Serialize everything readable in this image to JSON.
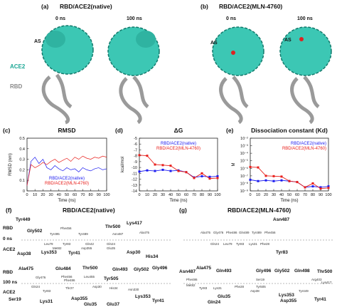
{
  "panel_a": {
    "label": "(a)",
    "title": "RBD/ACE2(native)",
    "time_left": "0 ns",
    "time_right": "100 ns",
    "site": "AS",
    "receptor": "ACE2",
    "domain": "RBD"
  },
  "panel_b": {
    "label": "(b)",
    "title": "RBD/ACE2(MLN-4760)",
    "time_left": "0 ns",
    "time_right": "100 ns",
    "site_left": "AS",
    "site_right": "AS"
  },
  "chart_data": [
    {
      "type": "line",
      "panel_label": "(c)",
      "title": "RMSD",
      "xlabel": "Time (ns)",
      "ylabel": "RMSD (nm)",
      "legend": "lower center",
      "x": [
        0,
        5,
        10,
        15,
        20,
        25,
        30,
        35,
        40,
        45,
        50,
        55,
        60,
        65,
        70,
        75,
        80,
        85,
        90,
        95,
        100
      ],
      "series": [
        {
          "name": "RBD/ACE2(native)",
          "color": "#1c1cf0",
          "values": [
            0.05,
            0.28,
            0.32,
            0.26,
            0.3,
            0.22,
            0.2,
            0.24,
            0.21,
            0.19,
            0.22,
            0.2,
            0.21,
            0.18,
            0.22,
            0.2,
            0.19,
            0.21,
            0.22,
            0.2,
            0.21
          ]
        },
        {
          "name": "RBD/ACE2(MLN-4760)",
          "color": "#e8201c",
          "values": [
            0.05,
            0.25,
            0.22,
            0.24,
            0.27,
            0.25,
            0.28,
            0.3,
            0.27,
            0.29,
            0.31,
            0.28,
            0.32,
            0.3,
            0.33,
            0.31,
            0.3,
            0.32,
            0.31,
            0.33,
            0.32
          ]
        }
      ],
      "xlim": [
        0,
        100
      ],
      "ylim": [
        0,
        0.5
      ],
      "xticks": [
        0,
        10,
        20,
        30,
        40,
        50,
        60,
        70,
        80,
        90,
        100
      ],
      "yticks": [
        0,
        0.1,
        0.2,
        0.3,
        0.4,
        0.5
      ],
      "markers": false
    },
    {
      "type": "line",
      "panel_label": "(d)",
      "title": "ΔG",
      "xlabel": "Time (ns)",
      "ylabel": "kcal/mol",
      "legend": "upper center",
      "x": [
        0,
        10,
        20,
        30,
        40,
        50,
        60,
        70,
        80,
        90,
        100
      ],
      "series": [
        {
          "name": "RBD/ACE2(native)",
          "color": "#1c1cf0",
          "values": [
            -10.7,
            -10.5,
            -10.6,
            -10.4,
            -10.6,
            -10.5,
            -10.8,
            -11.7,
            -11.5,
            -11.6,
            -11.5
          ]
        },
        {
          "name": "RBD/ACE2(MLN-4760)",
          "color": "#e8201c",
          "values": [
            -7.9,
            -8.0,
            -9.5,
            -9.6,
            -9.7,
            -10.6,
            -10.8,
            -11.8,
            -11.0,
            -11.9,
            -11.8
          ]
        }
      ],
      "xlim": [
        0,
        100
      ],
      "ylim": [
        -14,
        -5
      ],
      "xticks": [
        0,
        10,
        20,
        30,
        40,
        50,
        60,
        70,
        80,
        90,
        100
      ],
      "yticks": [
        -5,
        -6,
        -7,
        -8,
        -9,
        -10,
        -11,
        -12,
        -13,
        -14
      ],
      "markers": true
    },
    {
      "type": "line",
      "panel_label": "(e)",
      "title": "Dissociation constant (Kd)",
      "xlabel": "Time (ns)",
      "ylabel": "M",
      "legend": "upper right",
      "log_y": true,
      "x": [
        0,
        10,
        20,
        30,
        40,
        50,
        60,
        70,
        80,
        90,
        100
      ],
      "series": [
        {
          "name": "RBD/ACE2(native)",
          "color": "#1c1cf0",
          "values": [
            3e-08,
            2e-08,
            2.5e-08,
            2e-08,
            2.5e-08,
            2e-08,
            1.5e-08,
            3e-09,
            4e-09,
            3e-09,
            4e-09
          ]
        },
        {
          "name": "RBD/ACE2(MLN-4760)",
          "color": "#e8201c",
          "values": [
            1.5e-06,
            1.3e-06,
            1e-07,
            9e-08,
            8e-08,
            2e-08,
            1.5e-08,
            3e-09,
            1e-08,
            2e-09,
            2.5e-09
          ]
        }
      ],
      "xlim": [
        0,
        100
      ],
      "ylim": [
        1e-09,
        0.01
      ],
      "xticks": [
        0,
        10,
        20,
        30,
        40,
        50,
        60,
        70,
        80,
        90,
        100
      ],
      "yticks": [
        {
          "value": 0.01,
          "label": "10⁻²"
        },
        {
          "value": 0.001,
          "label": "10⁻³"
        },
        {
          "value": 0.0001,
          "label": "10⁻⁴"
        },
        {
          "value": 1e-05,
          "label": "10⁻⁵"
        },
        {
          "value": 1e-06,
          "label": "10⁻⁶"
        },
        {
          "value": 1e-07,
          "label": "10⁻⁷"
        },
        {
          "value": 1e-08,
          "label": "10⁻⁸"
        },
        {
          "value": 1e-09,
          "label": "10⁻⁹"
        }
      ],
      "markers": true
    }
  ],
  "panel_f": {
    "label": "(f)",
    "title": "RBD/ACE2(native)",
    "rows": [
      {
        "rbd": "RBD",
        "time": "0 ns",
        "ace2": "ACE2",
        "residues": [
          "Tyr449",
          "Gly502",
          "Thr500",
          "Lys417",
          "Asp38",
          "Lys353",
          "Tyr41",
          "Asp30",
          "His34"
        ],
        "minor": [
          "Phe456",
          "Tyr495",
          "Tyr489",
          "Asn487",
          "Ala475",
          "Leu79",
          "Met82",
          "Tyr83",
          "Gln42",
          "Asp355",
          "Gln24",
          "Glu35"
        ]
      },
      {
        "rbd": "RBD",
        "time": "100 ns",
        "ace2": "ACE2",
        "residues": [
          "Ala475",
          "Glu484",
          "Thr500",
          "Gln493",
          "Gly502",
          "Gly496",
          "Tyr505",
          "Ser19",
          "Lys31",
          "Asp355",
          "Glu35",
          "Glu37",
          "Lys353",
          "Tyr41"
        ],
        "minor": [
          "Gly476",
          "Phe456",
          "Phe486",
          "Leu455",
          "Gln24",
          "Thr27",
          "Asp30",
          "His34",
          "Tyr83",
          "Asn330"
        ]
      }
    ]
  },
  "panel_g": {
    "label": "(g)",
    "title": "RBD/ACE2(MLN-4760)",
    "rows": [
      {
        "residues": [
          "Asn487",
          "Tyr83"
        ],
        "minor": [
          "Ala475",
          "Gly476",
          "Phe486",
          "Gln489",
          "Tyr489",
          "Phe456",
          "Gln24",
          "Leu79",
          "Tyr83",
          "Lys31",
          "Phe28"
        ]
      },
      {
        "residues": [
          "Asn487",
          "Ala475",
          "Gln493",
          "Gly496",
          "Gly502",
          "Gln498",
          "Thr500",
          "Glu35",
          "Gln24",
          "Lys353",
          "Asp355",
          "Tyr41"
        ],
        "minor": [
          "Phe486",
          "Met82",
          "Tyr83",
          "Lys31",
          "Phe28",
          "Ser19",
          "Tyr505",
          "Arg403",
          "Lys417",
          "Asp38",
          "Tyr449"
        ]
      }
    ]
  }
}
